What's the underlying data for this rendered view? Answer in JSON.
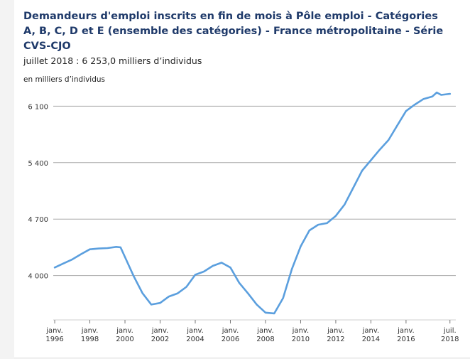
{
  "title": "Demandeurs d'emploi inscrits en fin de mois à Pôle emploi - Catégories A, B, C, D et E (ensemble des catégories) - France métropolitaine - Série CVS-CJO",
  "subtitle": "juillet 2018 : 6 253,0 milliers d’individus",
  "unit_label": "en milliers d’individus",
  "colors": {
    "line": "#5b9fde",
    "title": "#1f3a6a",
    "grid": "#a8a8a8"
  },
  "chart_data": {
    "type": "line",
    "title": "Demandeurs d'emploi inscrits en fin de mois à Pôle emploi - Catégories A, B, C, D et E (ensemble des catégories) - France métropolitaine - Série CVS-CJO",
    "ylabel": "en milliers d’individus",
    "xlabel": "",
    "ylim": [
      3450,
      6350
    ],
    "xlim": [
      "1995-12",
      "2018-11"
    ],
    "y_ticks": [
      {
        "value": 4000,
        "label": "4 000"
      },
      {
        "value": 4700,
        "label": "4 700"
      },
      {
        "value": 5400,
        "label": "5 400"
      },
      {
        "value": 6100,
        "label": "6 100"
      }
    ],
    "x_ticks": [
      {
        "date": "1996-01",
        "line1": "janv.",
        "line2": "1996"
      },
      {
        "date": "1998-01",
        "line1": "janv.",
        "line2": "1998"
      },
      {
        "date": "2000-01",
        "line1": "janv.",
        "line2": "2000"
      },
      {
        "date": "2002-01",
        "line1": "janv.",
        "line2": "2002"
      },
      {
        "date": "2004-01",
        "line1": "janv.",
        "line2": "2004"
      },
      {
        "date": "2006-01",
        "line1": "janv.",
        "line2": "2006"
      },
      {
        "date": "2008-01",
        "line1": "janv.",
        "line2": "2008"
      },
      {
        "date": "2010-01",
        "line1": "janv.",
        "line2": "2010"
      },
      {
        "date": "2012-01",
        "line1": "janv.",
        "line2": "2012"
      },
      {
        "date": "2014-01",
        "line1": "janv.",
        "line2": "2014"
      },
      {
        "date": "2016-01",
        "line1": "janv.",
        "line2": "2016"
      },
      {
        "date": "2018-07",
        "line1": "juil.",
        "line2": "2018"
      }
    ],
    "grid": true,
    "series": [
      {
        "points": [
          [
            "1996-01",
            4100
          ],
          [
            "1996-07",
            4150
          ],
          [
            "1997-01",
            4200
          ],
          [
            "1997-07",
            4265
          ],
          [
            "1998-01",
            4325
          ],
          [
            "1998-07",
            4335
          ],
          [
            "1999-01",
            4340
          ],
          [
            "1999-07",
            4355
          ],
          [
            "1999-10",
            4350
          ],
          [
            "2000-01",
            4230
          ],
          [
            "2000-07",
            3990
          ],
          [
            "2001-01",
            3780
          ],
          [
            "2001-07",
            3640
          ],
          [
            "2002-01",
            3660
          ],
          [
            "2002-07",
            3740
          ],
          [
            "2003-01",
            3780
          ],
          [
            "2003-07",
            3860
          ],
          [
            "2004-01",
            4010
          ],
          [
            "2004-07",
            4050
          ],
          [
            "2005-01",
            4120
          ],
          [
            "2005-07",
            4160
          ],
          [
            "2006-01",
            4100
          ],
          [
            "2006-07",
            3910
          ],
          [
            "2007-01",
            3780
          ],
          [
            "2007-07",
            3640
          ],
          [
            "2008-01",
            3540
          ],
          [
            "2008-07",
            3530
          ],
          [
            "2009-01",
            3720
          ],
          [
            "2009-07",
            4080
          ],
          [
            "2010-01",
            4360
          ],
          [
            "2010-07",
            4560
          ],
          [
            "2011-01",
            4630
          ],
          [
            "2011-07",
            4650
          ],
          [
            "2012-01",
            4740
          ],
          [
            "2012-07",
            4880
          ],
          [
            "2013-01",
            5090
          ],
          [
            "2013-07",
            5300
          ],
          [
            "2014-01",
            5430
          ],
          [
            "2014-07",
            5560
          ],
          [
            "2015-01",
            5680
          ],
          [
            "2015-07",
            5860
          ],
          [
            "2016-01",
            6040
          ],
          [
            "2016-07",
            6120
          ],
          [
            "2017-01",
            6190
          ],
          [
            "2017-07",
            6220
          ],
          [
            "2017-10",
            6270
          ],
          [
            "2018-01",
            6240
          ],
          [
            "2018-07",
            6253
          ]
        ]
      }
    ]
  }
}
